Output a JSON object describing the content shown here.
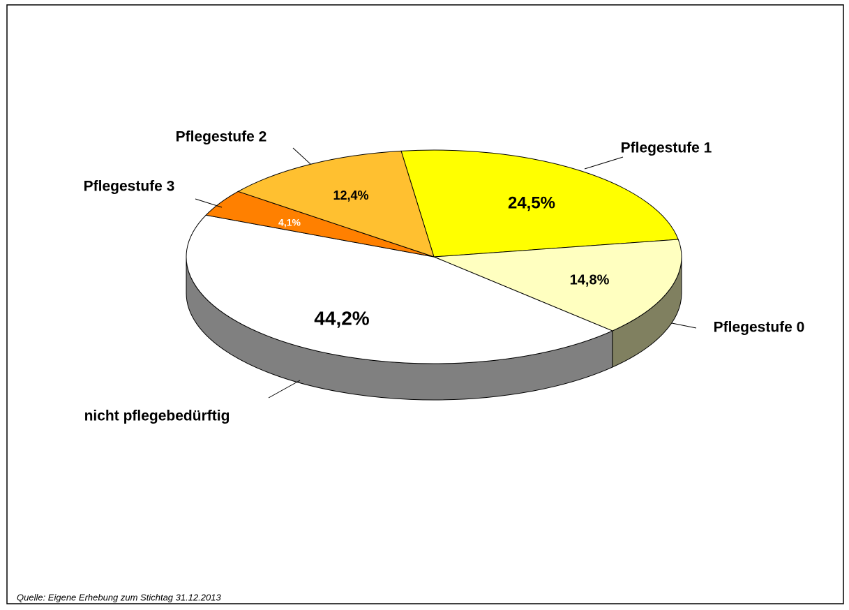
{
  "chart_data": {
    "type": "pie",
    "categories": [
      "Pflegestufe 1",
      "Pflegestufe 0",
      "nicht pflegebedürftig",
      "Pflegestufe 3",
      "Pflegestufe 2"
    ],
    "values": [
      24.5,
      14.8,
      44.2,
      4.1,
      12.4
    ],
    "value_labels": [
      "24,5%",
      "14,8%",
      "44,2%",
      "4,1%",
      "12,4%"
    ],
    "colors": [
      "#ffff00",
      "#ffffc0",
      "#ffffff",
      "#ff8000",
      "#ffc030"
    ],
    "source": "Quelle: Eigene Erhebung zum Stichtag 31.12.2013"
  }
}
